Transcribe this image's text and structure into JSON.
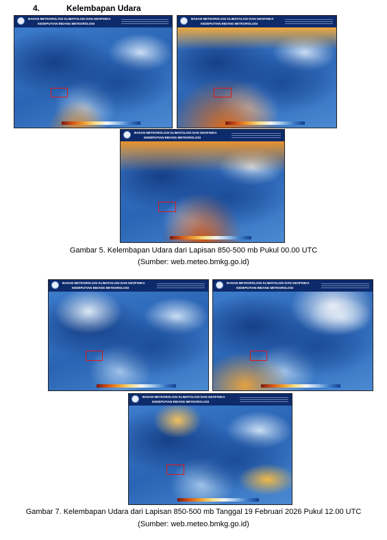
{
  "section": {
    "number": "4.",
    "title": "Kelembapan Udara"
  },
  "figures": [
    {
      "maps": [
        {
          "org": "BADAN METEOROLOGI KLIMATOLOGI DAN GEOFISIKA",
          "division": "KEDEPUTIAN BIDANG METEOROLOGI"
        },
        {
          "org": "BADAN METEOROLOGI KLIMATOLOGI DAN GEOFISIKA",
          "division": "KEDEPUTIAN BIDANG METEOROLOGI"
        },
        {
          "org": "BADAN METEOROLOGI KLIMATOLOGI DAN GEOFISIKA",
          "division": "KEDEPUTIAN BIDANG METEOROLOGI"
        }
      ],
      "caption": "Gambar 5. Kelembapan Udara dari Lapisan 850-500 mb Pukul 00.00 UTC",
      "source": "(Sumber: web.meteo.bmkg.go.id)"
    },
    {
      "maps": [
        {
          "org": "BADAN METEOROLOGI KLIMATOLOGI DAN GEOFISIKA",
          "division": "KEDEPUTIAN BIDANG METEOROLOGI"
        },
        {
          "org": "BADAN METEOROLOGI KLIMATOLOGI DAN GEOFISIKA",
          "division": "KEDEPUTIAN BIDANG METEOROLOGI"
        },
        {
          "org": "BADAN METEOROLOGI KLIMATOLOGI DAN GEOFISIKA",
          "division": "KEDEPUTIAN BIDANG METEOROLOGI"
        }
      ],
      "caption": "Gambar 7. Kelembapan Udara dari Lapisan 850-500 mb Tanggal 19 Februari 2026 Pukul 12.00 UTC",
      "source": "(Sumber: web.meteo.bmkg.go.id)"
    }
  ]
}
